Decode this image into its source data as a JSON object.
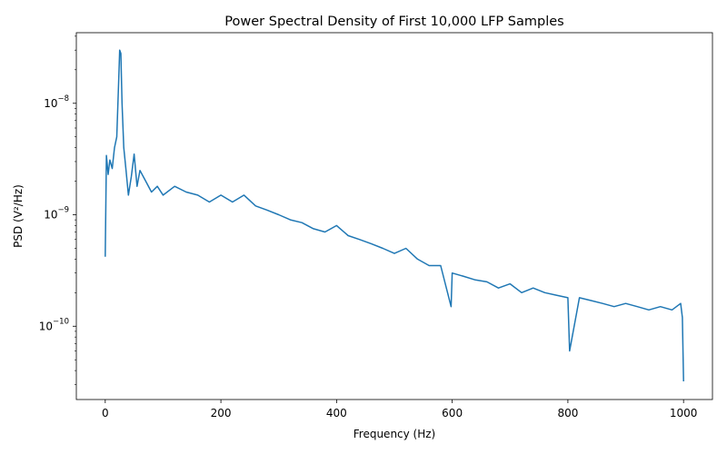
{
  "chart_data": {
    "type": "line",
    "title": "Power Spectral Density of First 10,000 LFP Samples",
    "xlabel": "Frequency (Hz)",
    "ylabel": "PSD (V²/Hz)",
    "xlim": [
      -50,
      1050
    ],
    "ylim": [
      2.2e-11,
      4.3e-08
    ],
    "yscale": "log",
    "grid": false,
    "xticks": [
      0,
      200,
      400,
      600,
      800,
      1000
    ],
    "yticks": [
      {
        "value": 1e-08,
        "mantissa": "10",
        "exponent": "−8"
      },
      {
        "value": 1e-09,
        "mantissa": "10",
        "exponent": "−9"
      },
      {
        "value": 1e-10,
        "mantissa": "10",
        "exponent": "−10"
      }
    ],
    "series": [
      {
        "color": "#1f77b4",
        "x": [
          0,
          2,
          5,
          8,
          12,
          16,
          20,
          23,
          25,
          27,
          29,
          32,
          36,
          40,
          45,
          50,
          55,
          60,
          70,
          80,
          90,
          100,
          120,
          140,
          160,
          180,
          200,
          220,
          240,
          260,
          280,
          300,
          320,
          340,
          360,
          380,
          400,
          420,
          440,
          460,
          480,
          500,
          520,
          540,
          560,
          580,
          598,
          600,
          620,
          640,
          660,
          680,
          700,
          720,
          740,
          760,
          780,
          800,
          803,
          820,
          840,
          860,
          880,
          900,
          920,
          940,
          960,
          980,
          995,
          998,
          1000
        ],
        "y": [
          4.2e-10,
          3.4e-09,
          2.3e-09,
          3.1e-09,
          2.6e-09,
          4e-09,
          5e-09,
          1.5e-08,
          3e-08,
          2.8e-08,
          1e-08,
          4e-09,
          2.5e-09,
          1.5e-09,
          2.2e-09,
          3.5e-09,
          1.8e-09,
          2.5e-09,
          2e-09,
          1.6e-09,
          1.8e-09,
          1.5e-09,
          1.8e-09,
          1.6e-09,
          1.5e-09,
          1.3e-09,
          1.5e-09,
          1.3e-09,
          1.5e-09,
          1.2e-09,
          1.1e-09,
          1e-09,
          9e-10,
          8.5e-10,
          7.5e-10,
          7e-10,
          8e-10,
          6.5e-10,
          6e-10,
          5.5e-10,
          5e-10,
          4.5e-10,
          5e-10,
          4e-10,
          3.5e-10,
          3.5e-10,
          1.5e-10,
          3e-10,
          2.8e-10,
          2.6e-10,
          2.5e-10,
          2.2e-10,
          2.4e-10,
          2e-10,
          2.2e-10,
          2e-10,
          1.9e-10,
          1.8e-10,
          6e-11,
          1.8e-10,
          1.7e-10,
          1.6e-10,
          1.5e-10,
          1.6e-10,
          1.5e-10,
          1.4e-10,
          1.5e-10,
          1.4e-10,
          1.6e-10,
          1.2e-10,
          3.2e-11
        ]
      }
    ]
  }
}
